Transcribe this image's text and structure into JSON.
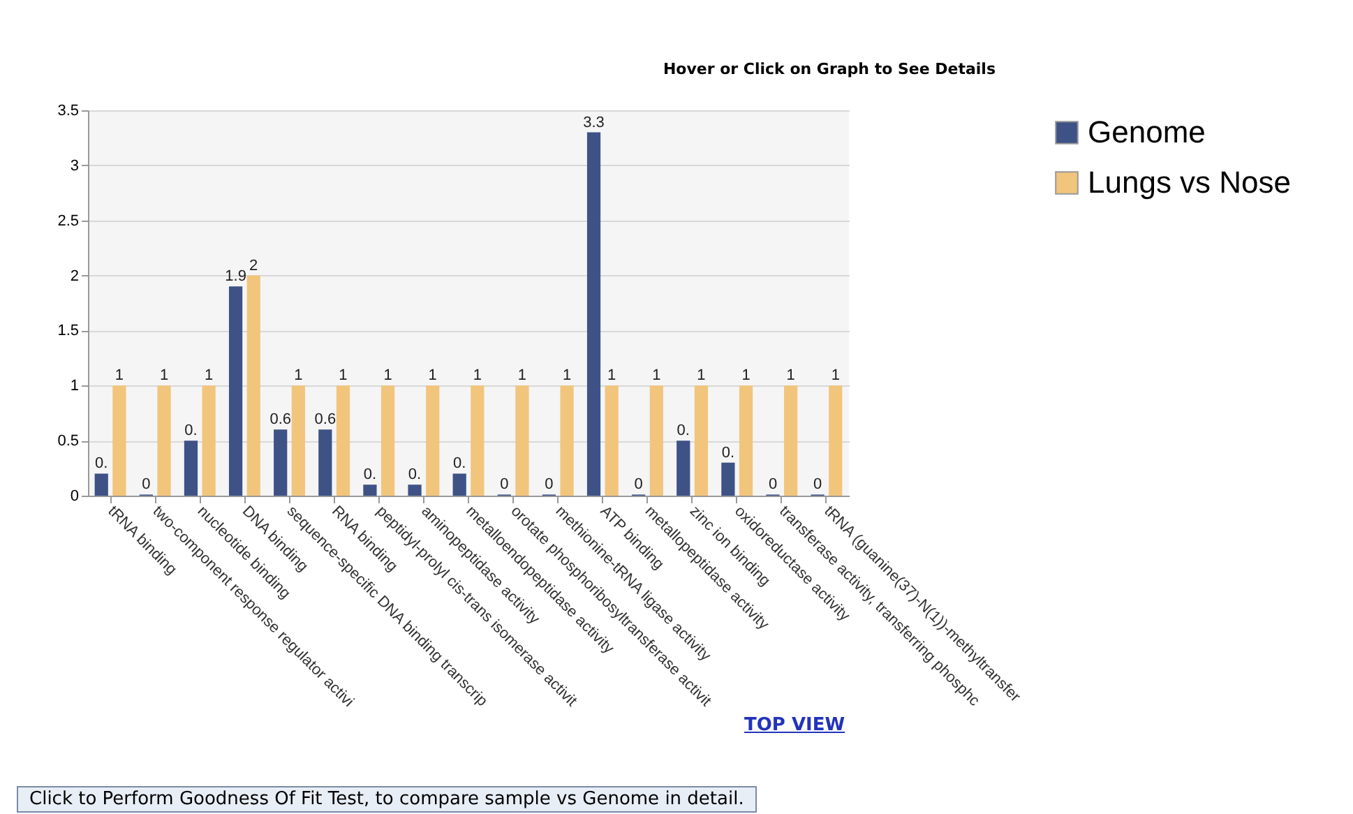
{
  "chart_data": {
    "type": "bar",
    "title": "Hover or Click on Graph to See Details",
    "categories": [
      "tRNA binding",
      "two-component response regulator activi",
      "nucleotide binding",
      "DNA binding",
      "sequence-specific DNA binding transcrip",
      "RNA binding",
      "peptidyl-prolyl cis-trans isomerase activit",
      "aminopeptidase activity",
      "metalloendopeptidase activity",
      "orotate phosphoribosyltransferase activit",
      "methionine-tRNA ligase activity",
      "ATP binding",
      "metallopeptidase activity",
      "zinc ion binding",
      "oxidoreductase activity",
      "transferase activity, transferring phosphc",
      "tRNA (guanine(37)-N(1))-methyltransfer"
    ],
    "series": [
      {
        "name": "Genome",
        "color": "#3e5286",
        "values": [
          0.2,
          0.01,
          0.5,
          1.9,
          0.6,
          0.6,
          0.1,
          0.1,
          0.2,
          0.01,
          0.01,
          3.3,
          0.01,
          0.5,
          0.3,
          0.01,
          0.01
        ],
        "value_labels": [
          "0.",
          "0",
          "0.",
          "1.9",
          "0.6",
          "0.6",
          "0.",
          "0.",
          "0.",
          "0",
          "0",
          "3.3",
          "0",
          "0.",
          "0.",
          "0",
          "0"
        ]
      },
      {
        "name": "Lungs vs Nose",
        "color": "#f2c57c",
        "values": [
          1,
          1,
          1,
          2,
          1,
          1,
          1,
          1,
          1,
          1,
          1,
          1,
          1,
          1,
          1,
          1,
          1
        ],
        "value_labels": [
          "1",
          "1",
          "1",
          "2",
          "1",
          "1",
          "1",
          "1",
          "1",
          "1",
          "1",
          "1",
          "1",
          "1",
          "1",
          "1",
          "1"
        ]
      }
    ],
    "ylim": [
      0,
      3.5
    ],
    "yticks": [
      0,
      0.5,
      1,
      1.5,
      2,
      2.5,
      3,
      3.5
    ],
    "grid": "y",
    "legend": "top right",
    "annotations": [
      "TOP VIEW",
      "Click to Perform Goodness Of Fit Test, to compare sample vs Genome in detail."
    ]
  }
}
